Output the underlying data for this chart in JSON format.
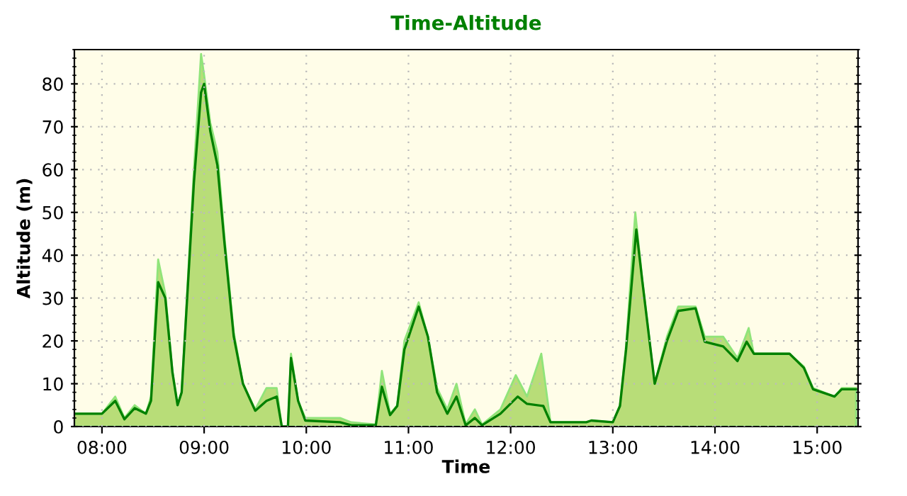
{
  "chart_data": {
    "type": "area",
    "title": "Time-Altitude",
    "xlabel": "Time",
    "ylabel": "Altitude (m)",
    "xlim": [
      7.73,
      15.4
    ],
    "ylim": [
      0,
      88
    ],
    "xticks": [
      {
        "value": 8,
        "label": "08:00"
      },
      {
        "value": 9,
        "label": "09:00"
      },
      {
        "value": 10,
        "label": "10:00"
      },
      {
        "value": 11,
        "label": "11:00"
      },
      {
        "value": 12,
        "label": "12:00"
      },
      {
        "value": 13,
        "label": "13:00"
      },
      {
        "value": 14,
        "label": "14:00"
      },
      {
        "value": 15,
        "label": "15:00"
      }
    ],
    "yticks": [
      0,
      10,
      20,
      30,
      40,
      50,
      60,
      70,
      80
    ],
    "grid": true,
    "legend": false,
    "series": [
      {
        "color": "#90e47a",
        "x": [
          7.73,
          8.0,
          8.13,
          8.22,
          8.32,
          8.43,
          8.48,
          8.55,
          8.62,
          8.69,
          8.74,
          8.78,
          8.9,
          8.97,
          9.0,
          9.06,
          9.13,
          9.2,
          9.29,
          9.38,
          9.5,
          9.61,
          9.71,
          9.76,
          9.82,
          9.85,
          9.92,
          9.99,
          10.33,
          10.44,
          10.68,
          10.74,
          10.82,
          10.89,
          10.96,
          11.1,
          11.19,
          11.28,
          11.38,
          11.47,
          11.56,
          11.65,
          11.72,
          11.9,
          12.05,
          12.16,
          12.3,
          12.39,
          12.74,
          12.79,
          13.0,
          13.07,
          13.13,
          13.22,
          13.29,
          13.41,
          13.53,
          13.64,
          13.81,
          13.9,
          14.08,
          14.22,
          14.33,
          14.38,
          14.73,
          14.87,
          14.96,
          15.17,
          15.24,
          15.38
        ],
        "values": [
          3,
          3,
          7,
          2,
          5,
          3,
          7,
          39,
          31,
          13,
          5,
          8,
          60,
          87,
          82,
          71,
          64,
          44,
          22,
          10,
          4,
          9,
          9,
          0,
          0,
          17,
          6,
          2,
          2,
          1,
          0.5,
          13,
          3,
          5,
          20,
          29,
          21,
          9,
          4,
          10,
          0.5,
          4,
          0.5,
          4,
          12,
          7,
          17,
          1,
          1,
          1.4,
          1,
          5,
          19,
          50,
          34,
          10,
          21,
          28,
          28,
          21,
          21,
          16,
          23,
          17,
          17,
          14,
          9,
          7,
          9,
          9
        ]
      },
      {
        "type": "line",
        "color": "#008000",
        "x": [
          7.73,
          8.0,
          8.13,
          8.22,
          8.32,
          8.43,
          8.48,
          8.55,
          8.62,
          8.69,
          8.74,
          8.78,
          8.9,
          8.97,
          9.0,
          9.06,
          9.13,
          9.2,
          9.29,
          9.38,
          9.5,
          9.61,
          9.71,
          9.76,
          9.82,
          9.85,
          9.92,
          9.99,
          10.33,
          10.44,
          10.68,
          10.74,
          10.82,
          10.89,
          10.96,
          11.1,
          11.19,
          11.28,
          11.38,
          11.47,
          11.56,
          11.65,
          11.72,
          11.9,
          12.07,
          12.16,
          12.32,
          12.39,
          12.74,
          12.79,
          13.0,
          13.07,
          13.13,
          13.23,
          13.29,
          13.41,
          13.53,
          13.64,
          13.81,
          13.9,
          14.08,
          14.22,
          14.31,
          14.38,
          14.73,
          14.87,
          14.96,
          15.17,
          15.24,
          15.38
        ],
        "values": [
          3,
          3,
          6,
          1.7,
          4.3,
          3,
          6,
          33.7,
          30,
          12.6,
          5,
          8,
          57,
          78,
          80,
          69,
          61,
          42.6,
          21,
          10,
          3.7,
          6,
          7,
          0,
          0,
          16,
          6,
          1.4,
          1,
          0.3,
          0.3,
          9.3,
          2.7,
          4.8,
          18,
          28,
          21,
          8,
          3,
          7,
          0.3,
          2,
          0.3,
          3,
          7,
          5.3,
          4.8,
          1,
          1,
          1.4,
          1,
          4.8,
          18,
          46,
          33.7,
          10,
          20,
          27,
          27.6,
          19.8,
          18.7,
          15.3,
          19.8,
          17,
          17,
          13.7,
          8.7,
          7,
          8.7,
          8.7
        ]
      }
    ]
  }
}
